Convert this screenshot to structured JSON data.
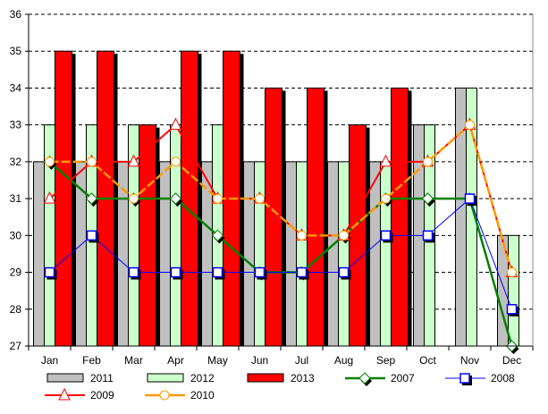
{
  "chart_data": {
    "type": "bar+line",
    "title": "",
    "xlabel": "",
    "ylabel": "",
    "ylim": [
      27,
      36
    ],
    "yticks": [
      "27",
      "28",
      "29",
      "30",
      "31",
      "32",
      "33",
      "34",
      "35",
      "36"
    ],
    "categories": [
      "Jan",
      "Feb",
      "Mar",
      "Apr",
      "May",
      "Jun",
      "Jul",
      "Aug",
      "Sep",
      "Oct",
      "Nov",
      "Dec"
    ],
    "legend_position": "bottom",
    "grid": "dashed horizontal",
    "bar_series": [
      {
        "name": "2011",
        "color": "#c0c0c0",
        "values": [
          32,
          32,
          32,
          32,
          32,
          32,
          32,
          32,
          32,
          33,
          34,
          30
        ]
      },
      {
        "name": "2012",
        "color": "#ccffcc",
        "values": [
          33,
          33,
          33,
          33,
          33,
          32,
          32,
          32,
          32,
          33,
          34,
          30
        ]
      },
      {
        "name": "2013",
        "color": "#ff0000",
        "values": [
          35,
          35,
          33,
          35,
          35,
          34,
          34,
          33,
          34,
          null,
          null,
          null
        ]
      }
    ],
    "line_series": [
      {
        "name": "2007",
        "color": "#008000",
        "marker": "diamond",
        "values": [
          32,
          31,
          31,
          31,
          30,
          29,
          29,
          30,
          31,
          31,
          31,
          27
        ]
      },
      {
        "name": "2008",
        "color": "#0000ff",
        "marker": "square",
        "values": [
          29,
          30,
          29,
          29,
          29,
          29,
          29,
          29,
          30,
          30,
          31,
          28
        ]
      },
      {
        "name": "2009",
        "color": "#ff0000",
        "marker": "triangle",
        "values": [
          31,
          32,
          32,
          33,
          31,
          31,
          30,
          30,
          32,
          32,
          33,
          29
        ]
      },
      {
        "name": "2010",
        "color": "#ff9900",
        "marker": "circle",
        "values": [
          32,
          32,
          31,
          32,
          31,
          31,
          30,
          30,
          31,
          32,
          33,
          29
        ]
      }
    ]
  }
}
